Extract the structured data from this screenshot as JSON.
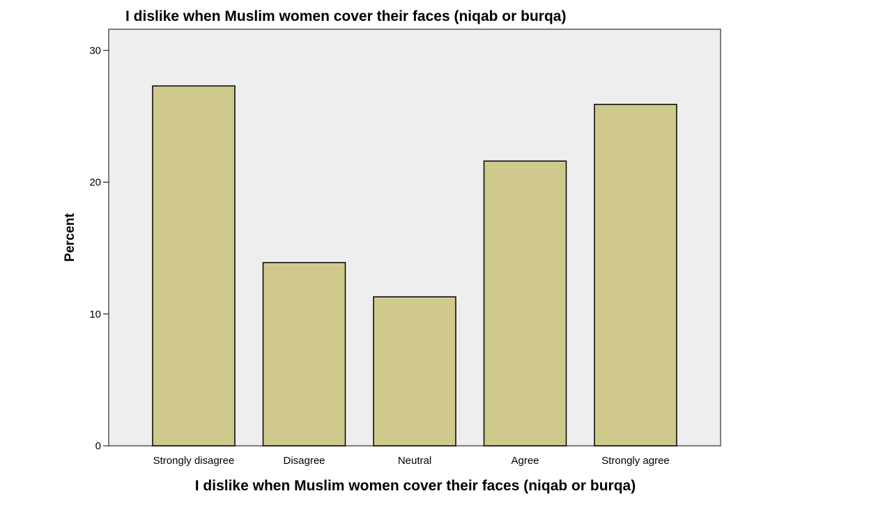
{
  "chart_data": {
    "type": "bar",
    "title": "I dislike when Muslim women cover their faces (niqab or burqa)",
    "xlabel": "I dislike when Muslim women cover their faces (niqab or burqa)",
    "ylabel": "Percent",
    "categories": [
      "Strongly disagree",
      "Disagree",
      "Neutral",
      "Agree",
      "Strongly agree"
    ],
    "values": [
      27.3,
      13.9,
      11.3,
      21.6,
      25.9
    ],
    "ylim": [
      0,
      31.6
    ],
    "yticks": [
      "0",
      "10",
      "20",
      "30"
    ],
    "grid": false,
    "colors": {
      "bar": "#cfca8c",
      "bar_stroke": "#000000",
      "plot_bg": "#eeeeee"
    }
  }
}
